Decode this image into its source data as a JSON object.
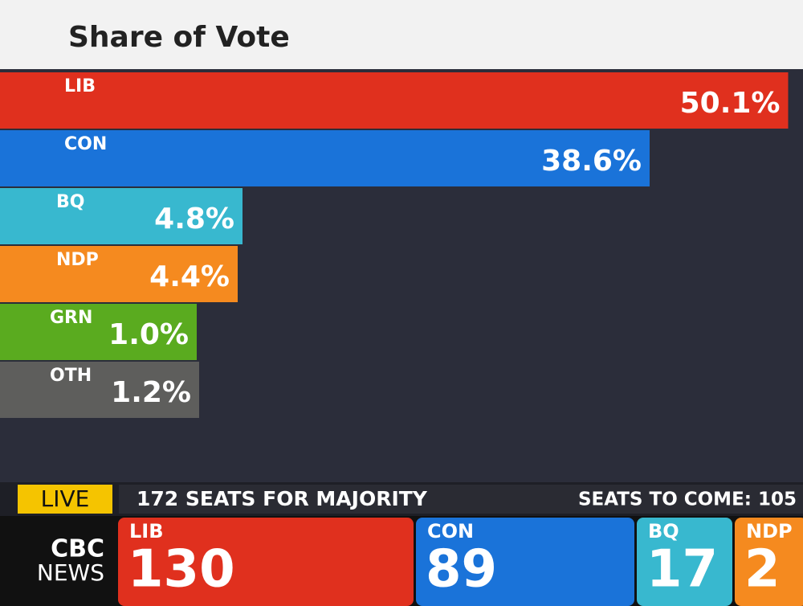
{
  "chart_data": {
    "type": "hbar",
    "title": "Share of Vote",
    "categories": [
      "LIB",
      "CON",
      "BQ",
      "NDP",
      "GRN",
      "OTH"
    ],
    "values": [
      50.1,
      38.6,
      4.8,
      4.4,
      1.0,
      1.2
    ],
    "value_labels": [
      "50.1%",
      "38.6%",
      "4.8%",
      "4.4%",
      "1.0%",
      "1.2%"
    ],
    "colors": [
      "#e0301e",
      "#1a73d9",
      "#38b8cf",
      "#f58a1f",
      "#5aab1f",
      "#5e5e5c"
    ]
  },
  "ticker": {
    "live": "LIVE",
    "majority": "172 SEATS FOR MAJORITY",
    "to_come": "SEATS TO COME: 105",
    "logo": [
      "CBC",
      "NEWS"
    ],
    "parties": [
      {
        "name": "LIB",
        "seats": "130",
        "color": "#e0301e"
      },
      {
        "name": "CON",
        "seats": "89",
        "color": "#1a73d9"
      },
      {
        "name": "BQ",
        "seats": "17",
        "color": "#38b8cf"
      },
      {
        "name": "NDP",
        "seats": "2",
        "color": "#f58a1f"
      }
    ]
  }
}
